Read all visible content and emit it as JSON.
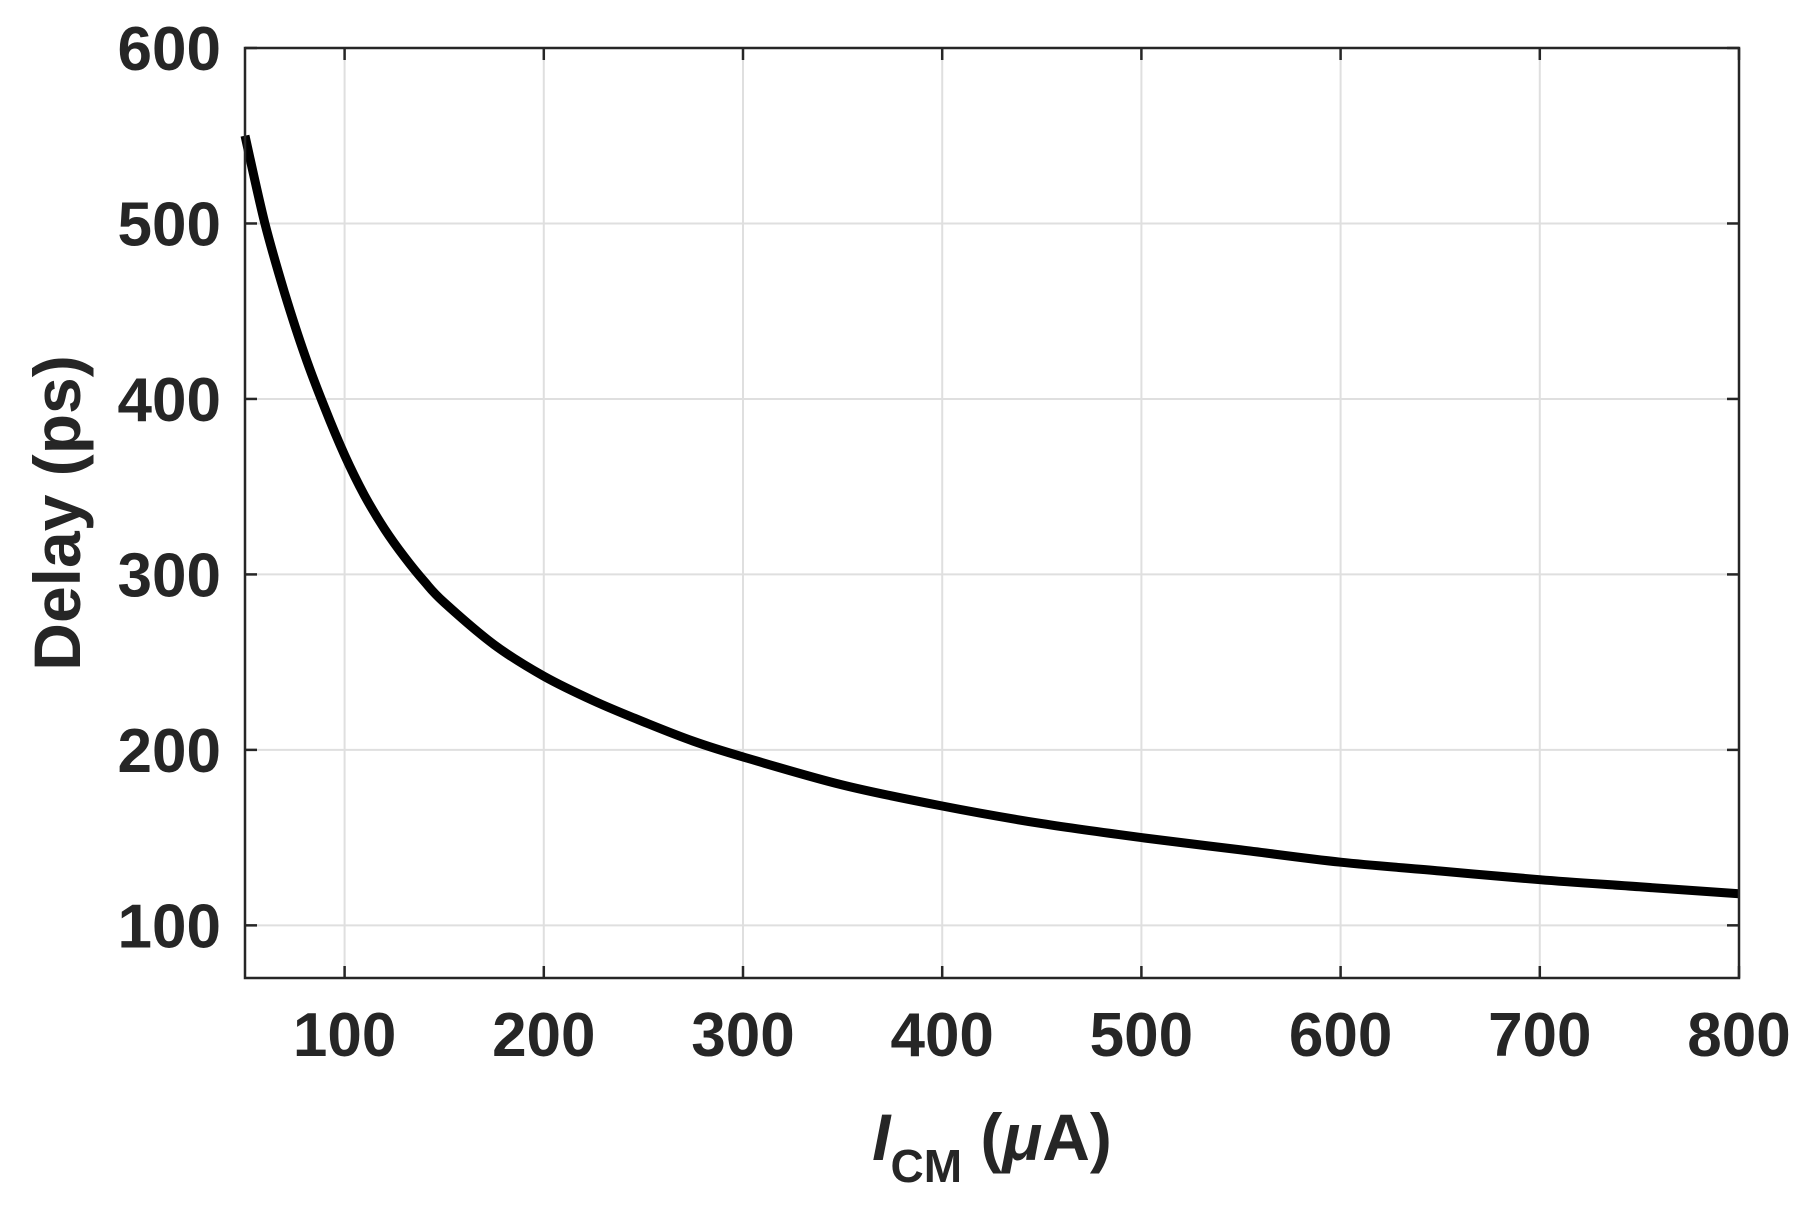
{
  "chart_data": {
    "type": "line",
    "title": "",
    "xlabel": {
      "main": "I",
      "subscript": "CM",
      "unit_open": " (",
      "unit_symbol": "μ",
      "unit_rest": "A)"
    },
    "ylabel": "Delay (ps)",
    "xlim": [
      50,
      800
    ],
    "ylim": [
      70,
      600
    ],
    "x_ticks": [
      100,
      200,
      300,
      400,
      500,
      600,
      700,
      800
    ],
    "y_ticks": [
      100,
      200,
      300,
      400,
      500,
      600
    ],
    "x_tick_labels": [
      "100",
      "200",
      "300",
      "400",
      "500",
      "600",
      "700",
      "800"
    ],
    "y_tick_labels": [
      "100",
      "200",
      "300",
      "400",
      "500",
      "600"
    ],
    "grid": true,
    "legend": "none",
    "series": [
      {
        "color": "#000000",
        "x": [
          50,
          60,
          70,
          80,
          90,
          100,
          110,
          120,
          130,
          140,
          150,
          175,
          200,
          225,
          250,
          275,
          300,
          350,
          400,
          450,
          500,
          550,
          600,
          650,
          700,
          750,
          800
        ],
        "y": [
          550,
          500,
          460,
          425,
          395,
          368,
          345,
          326,
          310,
          296,
          284,
          260,
          242,
          228,
          216,
          205,
          196,
          180,
          168,
          158,
          150,
          143,
          136,
          131,
          126,
          122,
          118
        ]
      }
    ]
  },
  "colors": {
    "background": "#ffffff",
    "grid": "#dfdfdf",
    "axes": "#262626",
    "line": "#000000"
  }
}
